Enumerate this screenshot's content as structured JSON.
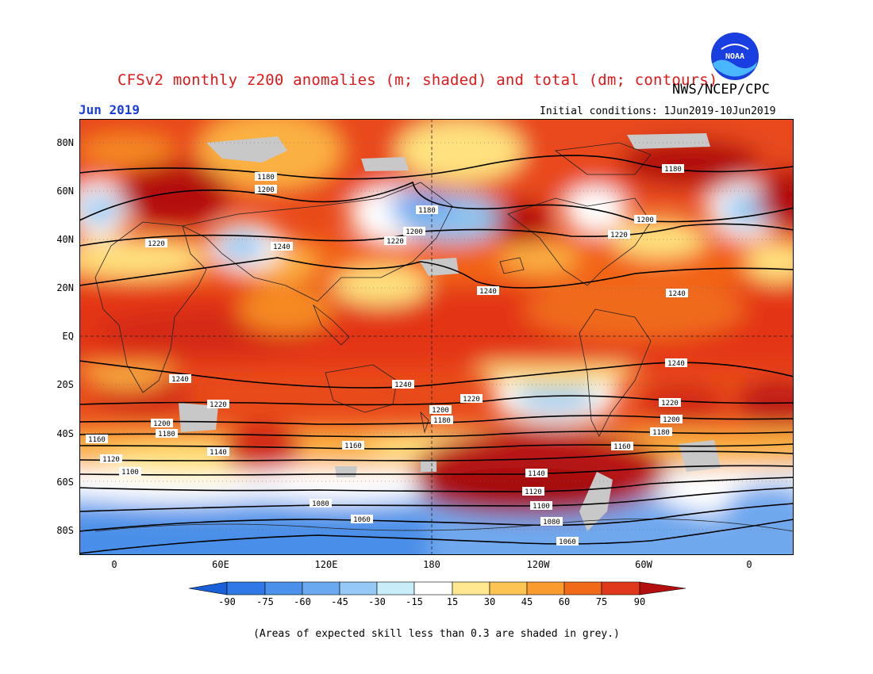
{
  "header": {
    "title": "CFSv2 monthly z200 anomalies (m; shaded) and total (dm; contours)",
    "agency": "NWS/NCEP/CPC",
    "month": "Jun 2019",
    "initial_conditions": "Initial conditions: 1Jun2019-10Jun2019",
    "logo_text": "NOAA"
  },
  "map": {
    "lat_labels": [
      "80N",
      "60N",
      "40N",
      "20N",
      "EQ",
      "20S",
      "40S",
      "60S",
      "80S"
    ],
    "lon_labels": [
      "0",
      "60E",
      "120E",
      "180",
      "120W",
      "60W",
      "0"
    ],
    "contour_labels": [
      "1060",
      "1080",
      "1100",
      "1120",
      "1140",
      "1160",
      "1180",
      "1200",
      "1220",
      "1240"
    ],
    "shading_colors": {
      "low_extreme": "#1a6fe0",
      "low": "#4a9ae8",
      "neg_mid": "#8cc4f0",
      "neutral": "#ffffff",
      "pos_low": "#ffe58a",
      "pos_mid": "#fbb040",
      "pos_high": "#f46a18",
      "high": "#e23a10",
      "high_extreme": "#b50f0f",
      "low_skill": "#c8c8c8"
    }
  },
  "colorbar": {
    "ticks": [
      "-90",
      "-75",
      "-60",
      "-45",
      "-30",
      "-15",
      "15",
      "30",
      "45",
      "60",
      "75",
      "90"
    ],
    "colors": [
      "#1a5fd8",
      "#2f78e6",
      "#4b91ec",
      "#6aa8f0",
      "#95c8f5",
      "#c8ecf8",
      "#ffffff",
      "#ffe88f",
      "#fcc452",
      "#f99b2e",
      "#f06a1a",
      "#e0381a",
      "#b40f0f"
    ]
  },
  "footnote": "(Areas of expected skill less than 0.3 are shaded in grey.)"
}
